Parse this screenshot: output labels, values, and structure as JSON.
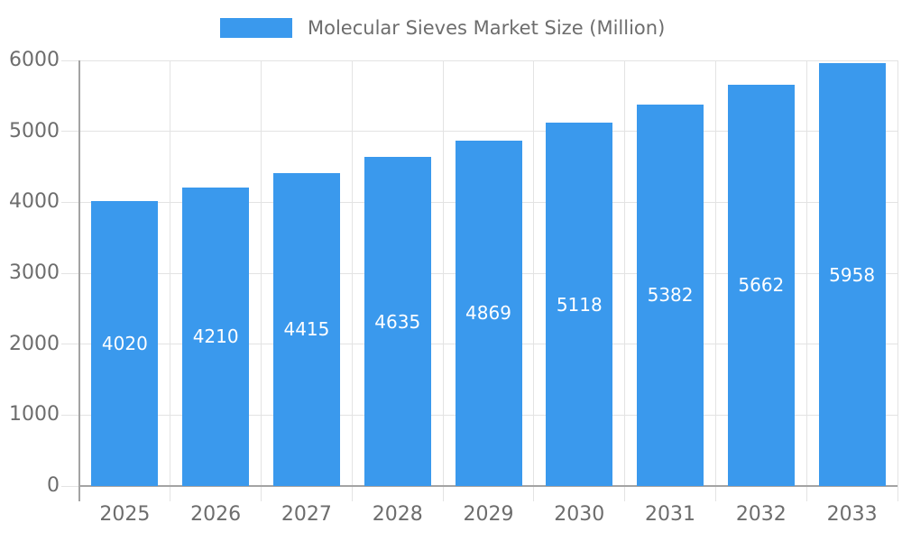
{
  "colors": {
    "bar": "#3a99ed",
    "grid": "#e3e3e3",
    "axis": "#a3a3a3",
    "text": "#6d6d6d",
    "bar_label": "#ffffff"
  },
  "legend": {
    "label": "Molecular Sieves Market Size (Million)"
  },
  "chart_data": {
    "type": "bar",
    "title": "Molecular Sieves Market Size (Million)",
    "series_name": "Molecular Sieves Market Size (Million)",
    "categories": [
      "2025",
      "2026",
      "2027",
      "2028",
      "2029",
      "2030",
      "2031",
      "2032",
      "2033"
    ],
    "values": [
      4020,
      4210,
      4415,
      4635,
      4869,
      5118,
      5382,
      5662,
      5958
    ],
    "xlabel": "",
    "ylabel": "",
    "ylim": [
      0,
      6000
    ],
    "ytick_step": 1000,
    "yticks": [
      "0",
      "1000",
      "2000",
      "3000",
      "4000",
      "5000",
      "6000"
    ],
    "grid": true,
    "legend_position": "top",
    "bar_labels": "centered-white-inside"
  }
}
